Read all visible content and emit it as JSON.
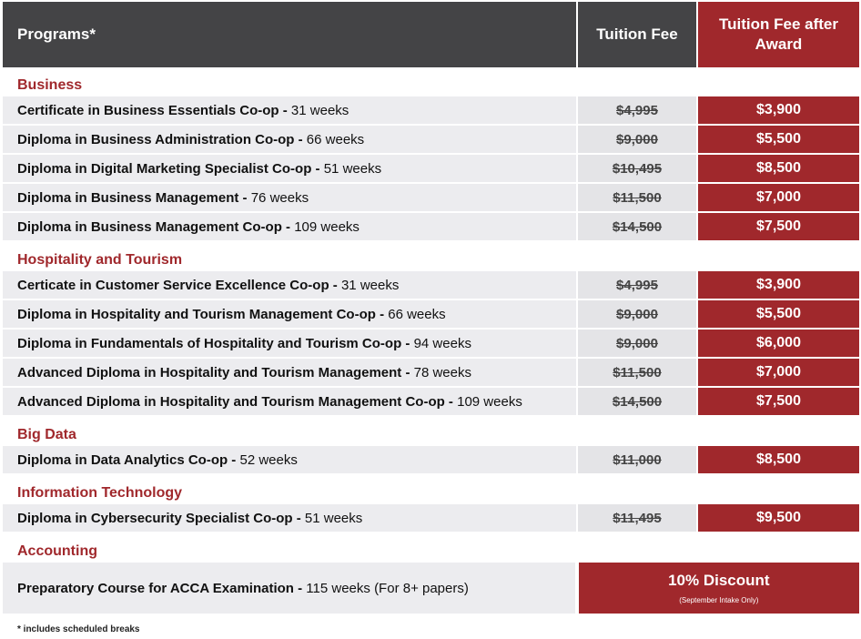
{
  "header": {
    "programs": "Programs*",
    "tuition_fee": "Tuition Fee",
    "tuition_after_award": "Tuition Fee after Award"
  },
  "categories": [
    {
      "name": "Business",
      "rows": [
        {
          "program": "Certificate in Business Essentials Co-op -",
          "duration": "31 weeks",
          "fee": "$4,995",
          "award": "$3,900"
        },
        {
          "program": "Diploma in Business Administration Co-op -",
          "duration": "66 weeks",
          "fee": "$9,000",
          "award": "$5,500"
        },
        {
          "program": "Diploma in Digital Marketing Specialist Co-op -",
          "duration": "51 weeks",
          "fee": "$10,495",
          "award": "$8,500"
        },
        {
          "program": "Diploma in Business Management -",
          "duration": "76 weeks",
          "fee": "$11,500",
          "award": "$7,000"
        },
        {
          "program": "Diploma in Business Management Co-op -",
          "duration": "109 weeks",
          "fee": "$14,500",
          "award": "$7,500"
        }
      ]
    },
    {
      "name": "Hospitality and Tourism",
      "rows": [
        {
          "program": "Certicate in Customer Service Excellence Co-op -",
          "duration": "31 weeks",
          "fee": "$4,995",
          "award": "$3,900"
        },
        {
          "program": "Diploma in Hospitality and Tourism Management Co-op -",
          "duration": "66 weeks",
          "fee": "$9,000",
          "award": "$5,500"
        },
        {
          "program": "Diploma in Fundamentals of Hospitality and Tourism Co-op -",
          "duration": "94 weeks",
          "fee": "$9,000",
          "award": "$6,000"
        },
        {
          "program": "Advanced Diploma in Hospitality and Tourism Management -",
          "duration": "78 weeks",
          "fee": "$11,500",
          "award": "$7,000"
        },
        {
          "program": "Advanced Diploma in Hospitality and Tourism Management Co-op -",
          "duration": "109 weeks",
          "fee": "$14,500",
          "award": "$7,500"
        }
      ]
    },
    {
      "name": "Big Data",
      "rows": [
        {
          "program": "Diploma in Data Analytics Co-op -",
          "duration": "52 weeks",
          "fee": "$11,000",
          "award": "$8,500"
        }
      ]
    },
    {
      "name": "Information Technology",
      "rows": [
        {
          "program": "Diploma in Cybersecurity Specialist Co-op -",
          "duration": "51 weeks",
          "fee": "$11,495",
          "award": "$9,500"
        }
      ]
    }
  ],
  "accounting": {
    "name": "Accounting",
    "program": "Preparatory Course for ACCA Examination -",
    "duration": "115 weeks (For 8+ papers)",
    "discount": "10% Discount",
    "discount_note": "(September Intake Only)"
  },
  "footnote": "* includes scheduled breaks",
  "colors": {
    "accent": "#a0282c",
    "header_bg": "#444446",
    "row_bg": "#ececef"
  }
}
